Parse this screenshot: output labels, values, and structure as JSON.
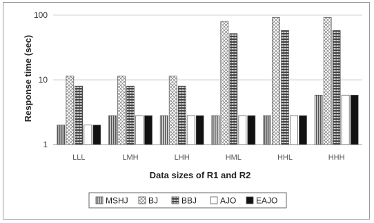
{
  "chart_data": {
    "type": "bar",
    "title": "",
    "xlabel": "Data sizes of R1 and R2",
    "ylabel": "Response time (sec)",
    "yscale": "log",
    "ylim": [
      1,
      100
    ],
    "yticks": [
      "1",
      "10",
      "100"
    ],
    "ytick_values": [
      1,
      10,
      100
    ],
    "grid": "horizontal major lines",
    "legend_position": "bottom",
    "categories": [
      "LLL",
      "LMH",
      "LHH",
      "HML",
      "HHL",
      "HHH"
    ],
    "series": [
      {
        "name": "MSHJ",
        "values": [
          2,
          2.8,
          2.8,
          2.8,
          2.8,
          5.8
        ],
        "pattern": "vertical-stripes",
        "color": "#555555"
      },
      {
        "name": "BJ",
        "values": [
          11.5,
          11.5,
          11.5,
          80,
          92,
          92
        ],
        "pattern": "crosshatch",
        "color": "#888888"
      },
      {
        "name": "BBJ",
        "values": [
          8,
          8,
          8,
          52,
          58,
          58
        ],
        "pattern": "horizontal-stripes",
        "color": "#444444"
      },
      {
        "name": "AJO",
        "values": [
          2,
          2.8,
          2.8,
          2.8,
          2.8,
          5.8
        ],
        "pattern": "white",
        "color": "#ffffff"
      },
      {
        "name": "EAJO",
        "values": [
          2,
          2.8,
          2.8,
          2.8,
          2.8,
          5.8
        ],
        "pattern": "solid-black",
        "color": "#111111"
      }
    ]
  }
}
